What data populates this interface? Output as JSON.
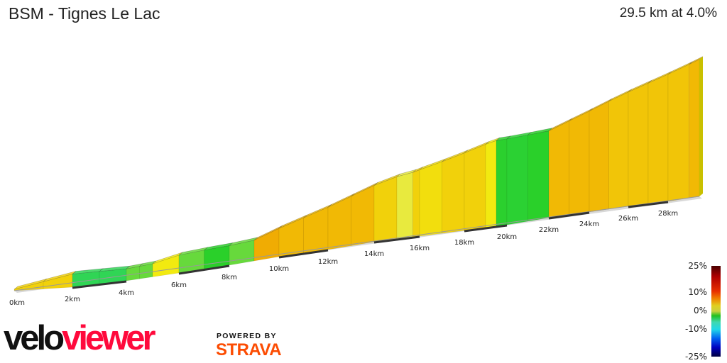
{
  "header": {
    "title": "BSM - Tignes Le Lac",
    "summary": "29.5 km at 4.0%"
  },
  "chart_data": {
    "type": "area",
    "title": "BSM - Tignes Le Lac",
    "subtitle": "29.5 km at 4.0%",
    "x_unit": "km",
    "x_range": [
      0,
      29.5
    ],
    "x_ticks": [
      "0km",
      "2km",
      "4km",
      "6km",
      "8km",
      "10km",
      "12km",
      "14km",
      "16km",
      "18km",
      "20km",
      "22km",
      "24km",
      "26km",
      "28km"
    ],
    "profile_distance_km": [
      0,
      1,
      2,
      3,
      4,
      4.5,
      5,
      6,
      7,
      8,
      9,
      10,
      11,
      12,
      13,
      14,
      15,
      15.7,
      16,
      17,
      18,
      19,
      19.5,
      20,
      21,
      22,
      23,
      24,
      25,
      26,
      27,
      28,
      29,
      29.5
    ],
    "profile_elevation_gain_m": [
      0,
      50,
      100,
      95,
      90,
      95,
      100,
      140,
      150,
      155,
      165,
      230,
      290,
      350,
      410,
      470,
      520,
      540,
      555,
      600,
      650,
      700,
      720,
      722,
      725,
      730,
      790,
      850,
      910,
      965,
      1020,
      1075,
      1130,
      1160
    ],
    "color_scale": {
      "label_stops": [
        "25%",
        "10%",
        "0%",
        "-10%",
        "-25%"
      ],
      "gradient_stops": [
        {
          "pct": 25,
          "color": "#4a0000"
        },
        {
          "pct": 15,
          "color": "#c00000"
        },
        {
          "pct": 10,
          "color": "#ee5000"
        },
        {
          "pct": 7,
          "color": "#f0a000"
        },
        {
          "pct": 4,
          "color": "#f2ea10"
        },
        {
          "pct": 2,
          "color": "#e0ea60"
        },
        {
          "pct": 0.5,
          "color": "#2ad02a"
        },
        {
          "pct": -3,
          "color": "#40e0c0"
        },
        {
          "pct": -10,
          "color": "#10d0f0"
        },
        {
          "pct": -15,
          "color": "#0050f0"
        },
        {
          "pct": -25,
          "color": "#000050"
        }
      ]
    },
    "grid": false,
    "legend": "right"
  },
  "branding": {
    "logo_velo": "velo",
    "logo_viewer": "viewer",
    "powered_by": "POWERED BY",
    "strava": "STRAVA"
  }
}
